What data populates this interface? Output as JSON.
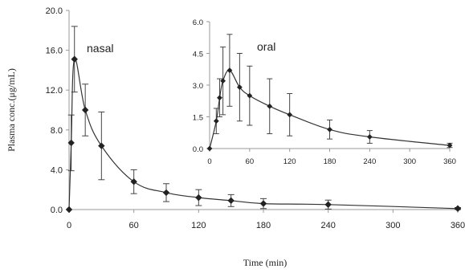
{
  "chart_data": [
    {
      "type": "line",
      "panel": "main",
      "series": [
        {
          "name": "nasal",
          "x": [
            0,
            2,
            5,
            15,
            30,
            60,
            90,
            120,
            150,
            180,
            240,
            360
          ],
          "y": [
            0.0,
            6.7,
            15.1,
            10.0,
            6.4,
            2.8,
            1.7,
            1.2,
            0.9,
            0.6,
            0.5,
            0.1
          ],
          "err": [
            0.0,
            2.8,
            3.3,
            2.6,
            3.4,
            1.2,
            0.9,
            0.8,
            0.6,
            0.5,
            0.45,
            0.1
          ]
        }
      ],
      "xlabel": "Time (min)",
      "ylabel": "Plasma conc.(μg/mL)",
      "xlim": [
        0,
        360
      ],
      "ylim": [
        0,
        20
      ],
      "x_ticks": [
        "0",
        "60",
        "120",
        "180",
        "240",
        "300",
        "360"
      ],
      "y_ticks": [
        "0.0",
        "4.0",
        "8.0",
        "12.0",
        "16.0",
        "20.0"
      ],
      "grid": false,
      "series_label_placement": "inline"
    },
    {
      "type": "line",
      "panel": "inset",
      "series": [
        {
          "name": "oral",
          "x": [
            0,
            10,
            15,
            20,
            30,
            45,
            60,
            90,
            120,
            180,
            240,
            360
          ],
          "y": [
            0.0,
            1.3,
            2.4,
            3.2,
            3.7,
            2.9,
            2.5,
            2.0,
            1.6,
            0.9,
            0.55,
            0.15
          ],
          "err": [
            0.0,
            0.6,
            0.9,
            1.6,
            1.7,
            1.6,
            1.4,
            1.3,
            1.0,
            0.45,
            0.3,
            0.1
          ]
        }
      ],
      "xlim": [
        0,
        360
      ],
      "ylim": [
        0,
        6
      ],
      "x_ticks": [
        "0",
        "60",
        "120",
        "180",
        "240",
        "300",
        "360"
      ],
      "y_ticks": [
        "0.0",
        "1.5",
        "3.0",
        "4.5",
        "6.0"
      ],
      "grid": false,
      "series_label_placement": "inline"
    }
  ],
  "colors": {
    "line": "#333333",
    "marker": "#222222",
    "axis": "#999999",
    "text": "#222222"
  }
}
